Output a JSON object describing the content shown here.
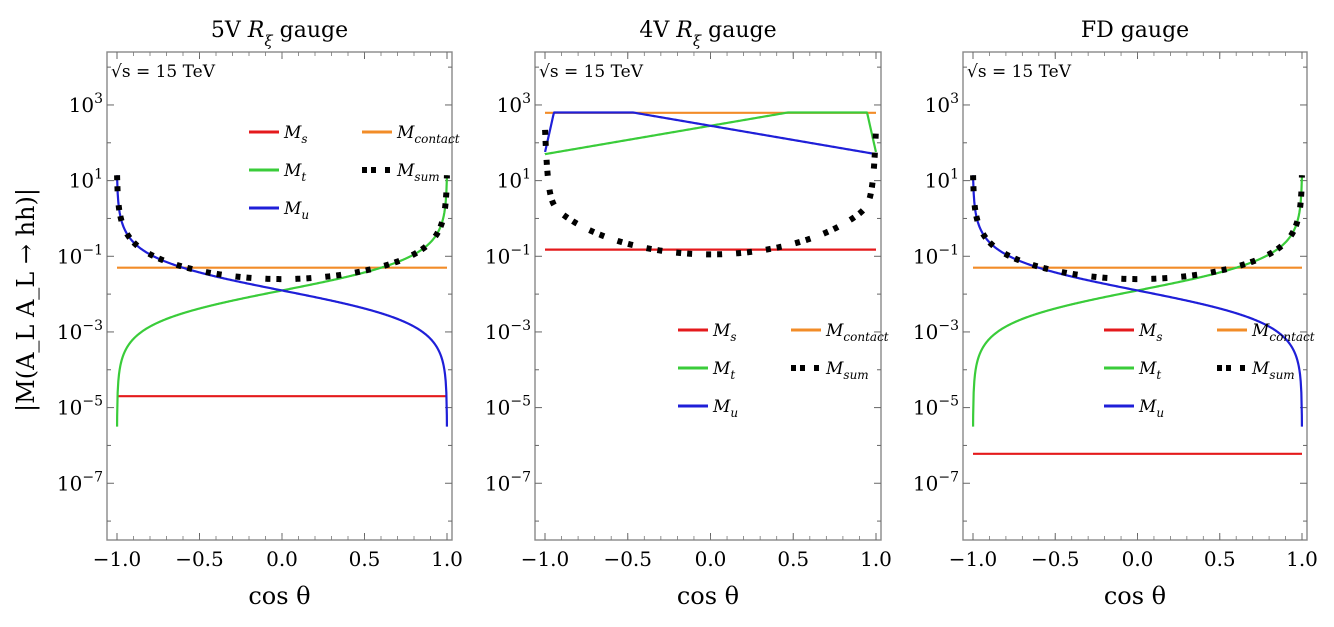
{
  "figure": {
    "ylabel": "|M(A_L A_L → hh)|",
    "xlabel": "cos θ"
  },
  "chart_data": [
    {
      "type": "line",
      "title": "5V R_ξ gauge",
      "title_parts": [
        "5V ",
        "R",
        "ξ",
        " gauge"
      ],
      "xlabel": "cos θ",
      "ylabel": "|M(A_L A_L → hh)|",
      "annotation": "√s = 15 TeV",
      "xlim": [
        -1.0,
        1.0
      ],
      "ylim_log10": [
        -8.5,
        4.4
      ],
      "x_ticks": [
        "−1.0",
        "−0.5",
        "0.0",
        "0.5",
        "1.0"
      ],
      "y_ticks": [
        {
          "exp": "3",
          "label": "10^3"
        },
        {
          "exp": "1",
          "label": "10^1"
        },
        {
          "exp": "-1",
          "label": "10^-1"
        },
        {
          "exp": "-3",
          "label": "10^-3"
        },
        {
          "exp": "-5",
          "label": "10^-5"
        },
        {
          "exp": "-7",
          "label": "10^-7"
        }
      ],
      "legend_position": "upper-right",
      "series": [
        {
          "name": "M_s",
          "label_main": "M",
          "label_sub": "s",
          "color": "#e41a1c",
          "style": "solid",
          "model": "const",
          "params": {
            "c": 2e-05
          }
        },
        {
          "name": "M_contact",
          "label_main": "M",
          "label_sub": "contact",
          "color": "#f28c28",
          "style": "solid",
          "model": "const",
          "params": {
            "c": 0.05
          }
        },
        {
          "name": "M_t",
          "label_main": "M",
          "label_sub": "t",
          "color": "#3acc3a",
          "style": "solid",
          "model": "ratio",
          "params": {
            "a": 0.0125,
            "b": 0.0013,
            "sign": 1
          }
        },
        {
          "name": "M_sum",
          "label_main": "M",
          "label_sub": "sum",
          "color": "#000000",
          "style": "dashdot",
          "model": "sum",
          "params": {
            "a": 0.0125,
            "b": 0.0013,
            "sign": 1
          }
        },
        {
          "name": "M_u",
          "label_main": "M",
          "label_sub": "u",
          "color": "#1f1fd8",
          "style": "solid",
          "model": "ratio",
          "params": {
            "a": 0.0125,
            "b": 0.0013,
            "sign": -1
          }
        }
      ]
    },
    {
      "type": "line",
      "title": "4V R_ξ gauge",
      "title_parts": [
        "4V ",
        "R",
        "ξ",
        " gauge"
      ],
      "xlabel": "cos θ",
      "ylabel": "",
      "annotation": "√s = 15 TeV",
      "xlim": [
        -1.0,
        1.0
      ],
      "ylim_log10": [
        -8.5,
        4.4
      ],
      "x_ticks": [
        "−1.0",
        "−0.5",
        "0.0",
        "0.5",
        "1.0"
      ],
      "y_ticks": [
        {
          "exp": "3",
          "label": "10^3"
        },
        {
          "exp": "1",
          "label": "10^1"
        },
        {
          "exp": "-1",
          "label": "10^-1"
        },
        {
          "exp": "-3",
          "label": "10^-3"
        },
        {
          "exp": "-5",
          "label": "10^-5"
        },
        {
          "exp": "-7",
          "label": "10^-7"
        }
      ],
      "legend_position": "lower-right",
      "series": [
        {
          "name": "M_s",
          "label_main": "M",
          "label_sub": "s",
          "color": "#e41a1c",
          "style": "solid",
          "model": "const",
          "params": {
            "c": 0.15
          }
        },
        {
          "name": "M_contact",
          "label_main": "M",
          "label_sub": "contact",
          "color": "#f28c28",
          "style": "solid",
          "model": "const",
          "params": {
            "c": 620
          }
        },
        {
          "name": "M_t",
          "label_main": "M",
          "label_sub": "t",
          "color": "#3acc3a",
          "style": "solid",
          "model": "4v",
          "params": {
            "side": 1
          }
        },
        {
          "name": "M_sum",
          "label_main": "M",
          "label_sub": "sum",
          "color": "#000000",
          "style": "dashdot",
          "model": "4vsum",
          "params": {}
        },
        {
          "name": "M_u",
          "label_main": "M",
          "label_sub": "u",
          "color": "#1f1fd8",
          "style": "solid",
          "model": "4v",
          "params": {
            "side": -1
          }
        }
      ]
    },
    {
      "type": "line",
      "title": "FD gauge",
      "title_parts": [
        "FD gauge"
      ],
      "xlabel": "cos θ",
      "ylabel": "",
      "annotation": "√s = 15 TeV",
      "xlim": [
        -1.0,
        1.0
      ],
      "ylim_log10": [
        -8.5,
        4.4
      ],
      "x_ticks": [
        "−1.0",
        "−0.5",
        "0.0",
        "0.5",
        "1.0"
      ],
      "y_ticks": [
        {
          "exp": "3",
          "label": "10^3"
        },
        {
          "exp": "1",
          "label": "10^1"
        },
        {
          "exp": "-1",
          "label": "10^-1"
        },
        {
          "exp": "-3",
          "label": "10^-3"
        },
        {
          "exp": "-5",
          "label": "10^-5"
        },
        {
          "exp": "-7",
          "label": "10^-7"
        }
      ],
      "legend_position": "lower-right",
      "series": [
        {
          "name": "M_s",
          "label_main": "M",
          "label_sub": "s",
          "color": "#e41a1c",
          "style": "solid",
          "model": "const",
          "params": {
            "c": 6e-07
          }
        },
        {
          "name": "M_contact",
          "label_main": "M",
          "label_sub": "contact",
          "color": "#f28c28",
          "style": "solid",
          "model": "const",
          "params": {
            "c": 0.05
          }
        },
        {
          "name": "M_t",
          "label_main": "M",
          "label_sub": "t",
          "color": "#3acc3a",
          "style": "solid",
          "model": "ratio",
          "params": {
            "a": 0.0125,
            "b": 0.0013,
            "sign": 1
          }
        },
        {
          "name": "M_sum",
          "label_main": "M",
          "label_sub": "sum",
          "color": "#000000",
          "style": "dashdot",
          "model": "sum",
          "params": {
            "a": 0.0125,
            "b": 0.0013,
            "sign": 1
          }
        },
        {
          "name": "M_u",
          "label_main": "M",
          "label_sub": "u",
          "color": "#1f1fd8",
          "style": "solid",
          "model": "ratio",
          "params": {
            "a": 0.0125,
            "b": 0.0013,
            "sign": -1
          }
        }
      ]
    }
  ]
}
